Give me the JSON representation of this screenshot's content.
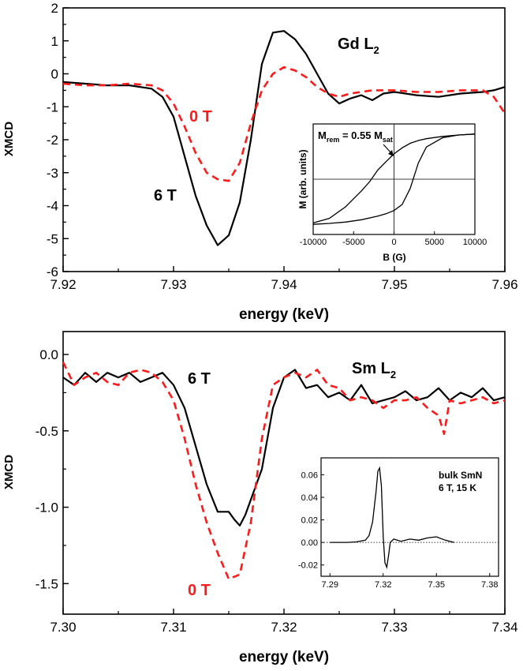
{
  "chart_data": [
    {
      "type": "line",
      "xlabel": "energy (keV)",
      "ylabel": "XMCD",
      "xlim": [
        7.92,
        7.96
      ],
      "ylim": [
        -6,
        2
      ],
      "xticks": [
        7.92,
        7.93,
        7.94,
        7.95,
        7.96
      ],
      "yticks": [
        2,
        1,
        0,
        -1,
        -2,
        -3,
        -4,
        -5,
        -6
      ],
      "annotations": {
        "edge": "Gd L",
        "edge_sub": "2",
        "field_zero": "0 T",
        "field_six": "6 T"
      },
      "series": [
        {
          "color": "#000000",
          "style": "solid",
          "x": [
            7.92,
            7.922,
            7.924,
            7.926,
            7.928,
            7.929,
            7.93,
            7.931,
            7.932,
            7.933,
            7.934,
            7.935,
            7.936,
            7.937,
            7.938,
            7.939,
            7.94,
            7.941,
            7.942,
            7.943,
            7.944,
            7.945,
            7.946,
            7.947,
            7.948,
            7.949,
            7.95,
            7.952,
            7.954,
            7.956,
            7.958,
            7.959,
            7.96
          ],
          "y": [
            -0.25,
            -0.3,
            -0.35,
            -0.35,
            -0.45,
            -0.7,
            -1.3,
            -2.5,
            -3.7,
            -4.6,
            -5.2,
            -4.9,
            -3.9,
            -2.0,
            0.3,
            1.25,
            1.3,
            1.05,
            0.6,
            0.0,
            -0.6,
            -0.9,
            -0.75,
            -0.65,
            -0.8,
            -0.6,
            -0.55,
            -0.65,
            -0.7,
            -0.6,
            -0.55,
            -0.5,
            -0.4
          ]
        },
        {
          "color": "#ff1a1a",
          "style": "dashed",
          "x": [
            7.92,
            7.922,
            7.924,
            7.926,
            7.928,
            7.929,
            7.93,
            7.931,
            7.932,
            7.933,
            7.934,
            7.935,
            7.936,
            7.937,
            7.938,
            7.939,
            7.94,
            7.941,
            7.942,
            7.943,
            7.944,
            7.945,
            7.946,
            7.948,
            7.95,
            7.952,
            7.954,
            7.956,
            7.958,
            7.959,
            7.96
          ],
          "y": [
            -0.3,
            -0.35,
            -0.35,
            -0.3,
            -0.35,
            -0.5,
            -0.9,
            -1.6,
            -2.4,
            -3.0,
            -3.2,
            -3.25,
            -2.7,
            -1.5,
            -0.5,
            0.0,
            0.2,
            0.1,
            -0.1,
            -0.4,
            -0.6,
            -0.7,
            -0.6,
            -0.5,
            -0.5,
            -0.55,
            -0.55,
            -0.5,
            -0.5,
            -0.7,
            -1.2
          ]
        }
      ],
      "inset": {
        "xlabel": "B (G)",
        "ylabel": "M (arb. units)",
        "xlim": [
          -10000,
          10000
        ],
        "xticks": [
          -10000,
          -5000,
          0,
          5000,
          10000
        ],
        "ylim": [
          -1.2,
          1.2
        ],
        "annotation_main": "M",
        "annotation_sub1": "rem",
        "annotation_mid": " = 0.55 M",
        "annotation_sub2": "sat",
        "series": [
          {
            "color": "#000000",
            "x": [
              -10000,
              -8000,
              -6000,
              -4000,
              -3000,
              -2000,
              -1000,
              0,
              1000,
              2000,
              3000,
              4000,
              6000,
              8000,
              10000
            ],
            "y": [
              -0.95,
              -0.85,
              -0.6,
              -0.25,
              -0.05,
              0.2,
              0.38,
              0.55,
              0.68,
              0.78,
              0.84,
              0.88,
              0.93,
              0.96,
              0.98
            ]
          },
          {
            "color": "#000000",
            "x": [
              10000,
              8000,
              6000,
              4000,
              3000,
              2000,
              1000,
              0,
              -1000,
              -2000,
              -4000,
              -6000,
              -8000,
              -10000
            ],
            "y": [
              0.98,
              0.96,
              0.9,
              0.7,
              0.35,
              -0.2,
              -0.55,
              -0.68,
              -0.75,
              -0.8,
              -0.88,
              -0.93,
              -0.96,
              -0.98
            ]
          }
        ]
      }
    },
    {
      "type": "line",
      "xlabel": "energy (keV)",
      "ylabel": "XMCD",
      "xlim": [
        7.3,
        7.34
      ],
      "ylim": [
        -1.7,
        0.15
      ],
      "xticks": [
        7.3,
        7.31,
        7.32,
        7.33,
        7.34
      ],
      "yticks": [
        0.0,
        -0.5,
        -1.0,
        -1.5
      ],
      "ytick_labels": [
        "0.0",
        "-0.5",
        "-1.0",
        "-1.5"
      ],
      "annotations": {
        "edge": "Sm L",
        "edge_sub": "2",
        "field_zero": "0 T",
        "field_six": "6 T"
      },
      "series": [
        {
          "color": "#000000",
          "style": "solid",
          "x": [
            7.3,
            7.301,
            7.302,
            7.303,
            7.304,
            7.305,
            7.306,
            7.307,
            7.308,
            7.309,
            7.31,
            7.311,
            7.312,
            7.313,
            7.314,
            7.315,
            7.3155,
            7.316,
            7.3165,
            7.317,
            7.318,
            7.319,
            7.32,
            7.321,
            7.322,
            7.323,
            7.324,
            7.325,
            7.326,
            7.327,
            7.328,
            7.329,
            7.33,
            7.331,
            7.332,
            7.333,
            7.334,
            7.335,
            7.336,
            7.337,
            7.338,
            7.339,
            7.34
          ],
          "y": [
            -0.15,
            -0.2,
            -0.12,
            -0.18,
            -0.12,
            -0.15,
            -0.12,
            -0.18,
            -0.15,
            -0.12,
            -0.2,
            -0.35,
            -0.6,
            -0.85,
            -1.03,
            -1.03,
            -1.08,
            -1.12,
            -1.05,
            -0.95,
            -0.75,
            -0.35,
            -0.15,
            -0.1,
            -0.22,
            -0.2,
            -0.28,
            -0.25,
            -0.3,
            -0.2,
            -0.32,
            -0.3,
            -0.28,
            -0.24,
            -0.3,
            -0.28,
            -0.22,
            -0.3,
            -0.25,
            -0.28,
            -0.22,
            -0.3,
            -0.28
          ]
        },
        {
          "color": "#ff1a1a",
          "style": "dashed",
          "x": [
            7.3,
            7.301,
            7.302,
            7.303,
            7.304,
            7.305,
            7.306,
            7.307,
            7.308,
            7.309,
            7.31,
            7.311,
            7.312,
            7.313,
            7.314,
            7.315,
            7.316,
            7.317,
            7.318,
            7.319,
            7.32,
            7.321,
            7.322,
            7.323,
            7.324,
            7.325,
            7.326,
            7.327,
            7.328,
            7.329,
            7.33,
            7.331,
            7.332,
            7.333,
            7.334,
            7.3345,
            7.335,
            7.336,
            7.337,
            7.338,
            7.339,
            7.34
          ],
          "y": [
            -0.05,
            -0.2,
            -0.15,
            -0.12,
            -0.18,
            -0.2,
            -0.12,
            -0.1,
            -0.12,
            -0.18,
            -0.3,
            -0.55,
            -0.85,
            -1.1,
            -1.3,
            -1.47,
            -1.44,
            -1.1,
            -0.55,
            -0.2,
            -0.15,
            -0.12,
            -0.15,
            -0.1,
            -0.2,
            -0.22,
            -0.3,
            -0.28,
            -0.3,
            -0.35,
            -0.3,
            -0.3,
            -0.28,
            -0.35,
            -0.4,
            -0.52,
            -0.3,
            -0.32,
            -0.3,
            -0.28,
            -0.32,
            -0.3
          ]
        }
      ],
      "inset": {
        "xlim": [
          7.285,
          7.385
        ],
        "xticks": [
          7.29,
          7.32,
          7.35,
          7.38
        ],
        "ylim": [
          -0.03,
          0.075
        ],
        "yticks": [
          0.06,
          0.04,
          0.02,
          0.0,
          -0.02
        ],
        "ytick_labels": [
          "0.06",
          "0.04",
          "0.02",
          "0.00",
          "-0.02"
        ],
        "annotation_line1": "bulk SmN",
        "annotation_line2": "6 T, 15 K",
        "series": [
          {
            "color": "#000000",
            "x": [
              7.29,
              7.3,
              7.305,
              7.31,
              7.312,
              7.314,
              7.316,
              7.317,
              7.318,
              7.319,
              7.32,
              7.321,
              7.322,
              7.323,
              7.324,
              7.326,
              7.33,
              7.335,
              7.34,
              7.345,
              7.35,
              7.355,
              7.36
            ],
            "y": [
              0.0,
              0.0,
              0.0005,
              0.002,
              0.006,
              0.018,
              0.045,
              0.063,
              0.066,
              0.05,
              0.005,
              -0.018,
              -0.022,
              -0.012,
              0.0,
              0.003,
              0.001,
              0.003,
              0.002,
              0.004,
              0.005,
              0.002,
              0.0
            ]
          }
        ]
      }
    }
  ]
}
